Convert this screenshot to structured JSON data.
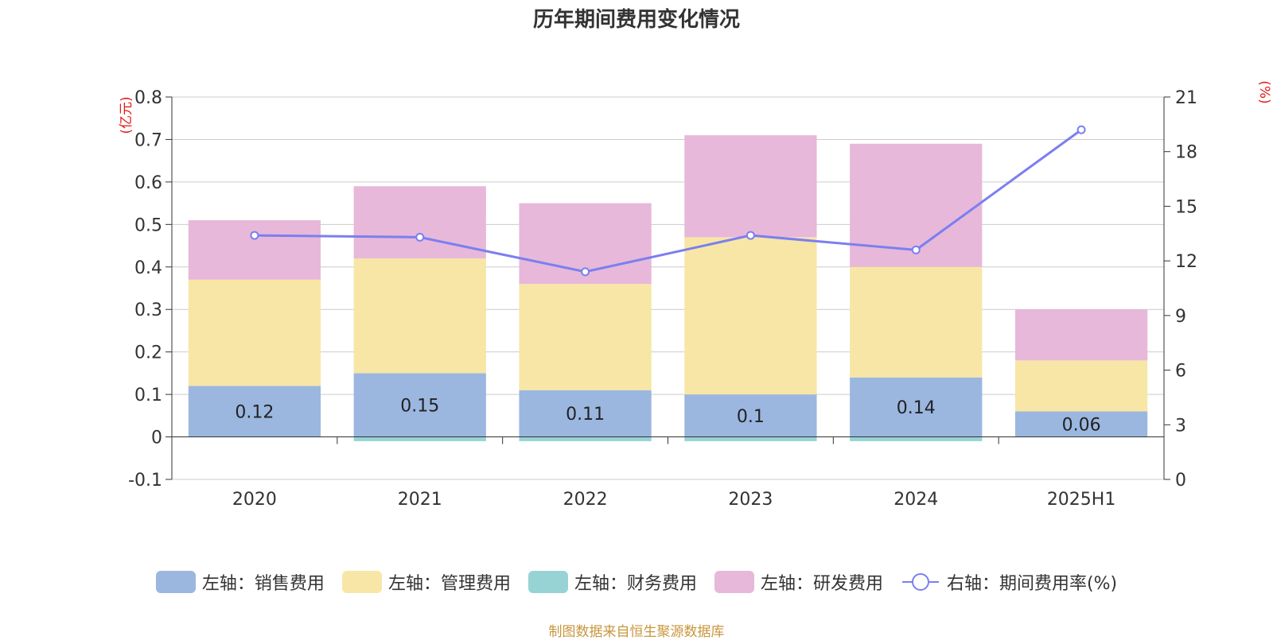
{
  "chart_data": {
    "type": "bar",
    "title": "历年期间费用变化情况",
    "categories": [
      "2020",
      "2021",
      "2022",
      "2023",
      "2024",
      "2025H1"
    ],
    "left_axis": {
      "unit": "(亿元)",
      "ylim": [
        -0.1,
        0.8
      ],
      "ticks": [
        "-0.1",
        "0",
        "0.1",
        "0.2",
        "0.3",
        "0.4",
        "0.5",
        "0.6",
        "0.7",
        "0.8"
      ]
    },
    "right_axis": {
      "unit": "(%)",
      "ylim": [
        0,
        21
      ],
      "ticks": [
        "0",
        "3",
        "6",
        "9",
        "12",
        "15",
        "18",
        "21"
      ]
    },
    "stacked": true,
    "series": [
      {
        "name": "左轴：销售费用",
        "axis": "left",
        "color": "#9bb7e0",
        "values": [
          0.12,
          0.15,
          0.11,
          0.1,
          0.14,
          0.06
        ],
        "labels": [
          "0.12",
          "0.15",
          "0.11",
          "0.1",
          "0.14",
          "0.06"
        ]
      },
      {
        "name": "左轴：管理费用",
        "axis": "left",
        "color": "#f7e6a6",
        "values": [
          0.25,
          0.27,
          0.25,
          0.37,
          0.26,
          0.12
        ]
      },
      {
        "name": "左轴：财务费用",
        "axis": "left",
        "color": "#97d3d4",
        "values": [
          0.0,
          -0.01,
          -0.01,
          -0.01,
          -0.01,
          0.0
        ]
      },
      {
        "name": "左轴：研发费用",
        "axis": "left",
        "color": "#e7b8d9",
        "values": [
          0.14,
          0.17,
          0.19,
          0.24,
          0.29,
          0.12
        ]
      },
      {
        "name": "右轴：期间费用率(%)",
        "axis": "right",
        "type": "line",
        "color": "#7b7ff0",
        "values": [
          13.4,
          13.3,
          11.4,
          13.4,
          12.6,
          19.2
        ]
      }
    ],
    "grid": true,
    "legend_position": "bottom"
  },
  "footer": {
    "source": "制图数据来自恒生聚源数据库"
  },
  "colors": {
    "axis_unit": "#e01b1b",
    "axis_line": "#333333",
    "grid": "#cccccc"
  }
}
